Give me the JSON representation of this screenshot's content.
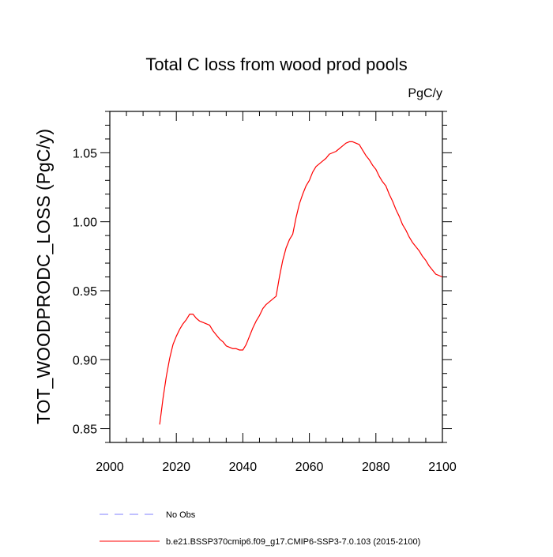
{
  "chart_data": {
    "type": "line",
    "title": "Total C loss from wood prod pools",
    "units": "PgC/y",
    "ylabel": "TOT_WOODPRODC_LOSS  (PgC/y)",
    "xlabel": "",
    "xlim": [
      2000,
      2100
    ],
    "ylim": [
      0.84,
      1.08
    ],
    "xticks": [
      2000,
      2020,
      2040,
      2060,
      2080,
      2100
    ],
    "xtick_labels": [
      "2000",
      "2020",
      "2040",
      "2060",
      "2080",
      "2100"
    ],
    "yticks": [
      0.85,
      0.9,
      0.95,
      1.0,
      1.05
    ],
    "ytick_labels": [
      "0.85",
      "0.90",
      "0.95",
      "1.00",
      "1.05"
    ],
    "grid": false,
    "legend_position": "bottom",
    "legend": [
      {
        "label": "No Obs",
        "color": "#8080ff",
        "style": "dashed"
      },
      {
        "label": "b.e21.BSSP370cmip6.f09_g17.CMIP6-SSP3-7.0.103 (2015-2100)",
        "color": "#ff0000",
        "style": "solid"
      }
    ],
    "series": [
      {
        "name": "b.e21.BSSP370cmip6.f09_g17.CMIP6-SSP3-7.0.103 (2015-2100)",
        "color": "#ff0000",
        "x": [
          2015,
          2016,
          2017,
          2018,
          2019,
          2020,
          2021,
          2022,
          2023,
          2024,
          2025,
          2026,
          2027,
          2028,
          2029,
          2030,
          2031,
          2032,
          2033,
          2034,
          2035,
          2036,
          2037,
          2038,
          2039,
          2040,
          2041,
          2042,
          2043,
          2044,
          2045,
          2046,
          2047,
          2048,
          2049,
          2050,
          2051,
          2052,
          2053,
          2054,
          2055,
          2056,
          2057,
          2058,
          2059,
          2060,
          2061,
          2062,
          2063,
          2064,
          2065,
          2066,
          2067,
          2068,
          2069,
          2070,
          2071,
          2072,
          2073,
          2074,
          2075,
          2076,
          2077,
          2078,
          2079,
          2080,
          2081,
          2082,
          2083,
          2084,
          2085,
          2086,
          2087,
          2088,
          2089,
          2090,
          2091,
          2092,
          2093,
          2094,
          2095,
          2096,
          2097,
          2098,
          2099,
          2100
        ],
        "y": [
          0.853,
          0.872,
          0.888,
          0.901,
          0.911,
          0.917,
          0.922,
          0.926,
          0.929,
          0.933,
          0.933,
          0.93,
          0.928,
          0.927,
          0.926,
          0.925,
          0.921,
          0.918,
          0.915,
          0.913,
          0.91,
          0.909,
          0.908,
          0.908,
          0.907,
          0.907,
          0.911,
          0.917,
          0.923,
          0.928,
          0.932,
          0.937,
          0.94,
          0.942,
          0.944,
          0.946,
          0.96,
          0.972,
          0.981,
          0.987,
          0.991,
          1.003,
          1.013,
          1.02,
          1.026,
          1.03,
          1.036,
          1.04,
          1.042,
          1.044,
          1.046,
          1.049,
          1.05,
          1.051,
          1.053,
          1.055,
          1.057,
          1.058,
          1.058,
          1.057,
          1.056,
          1.052,
          1.048,
          1.045,
          1.041,
          1.038,
          1.033,
          1.029,
          1.026,
          1.02,
          1.015,
          1.009,
          1.004,
          0.998,
          0.994,
          0.989,
          0.985,
          0.982,
          0.979,
          0.975,
          0.972,
          0.968,
          0.965,
          0.962,
          0.961,
          0.96
        ]
      }
    ]
  }
}
